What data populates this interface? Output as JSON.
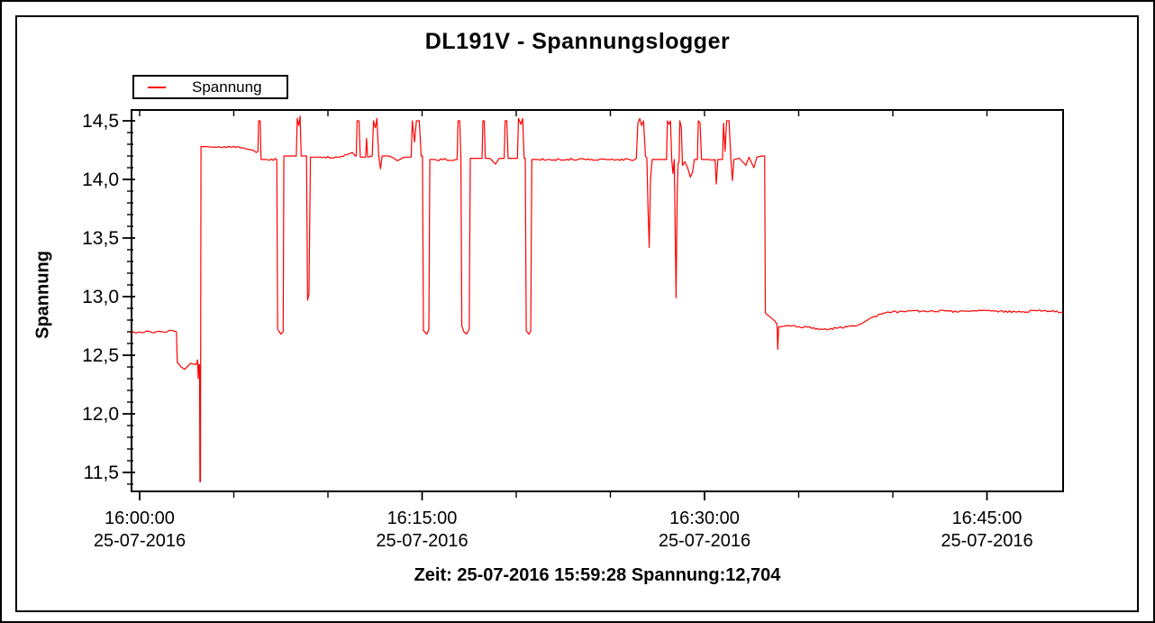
{
  "window": {
    "background": "#ffffff",
    "border_color": "#000000"
  },
  "title": "DL191V - Spannungslogger",
  "legend": {
    "label": "Spannung",
    "line_color": "#ff0000"
  },
  "y_axis": {
    "label": "Spannung",
    "ticks": [
      {
        "label": "14,5",
        "value": 14.5
      },
      {
        "label": "14,0",
        "value": 14.0
      },
      {
        "label": "13,5",
        "value": 13.5
      },
      {
        "label": "13,0",
        "value": 13.0
      },
      {
        "label": "12,5",
        "value": 12.5
      },
      {
        "label": "12,0",
        "value": 12.0
      },
      {
        "label": "11,5",
        "value": 11.5
      }
    ],
    "minor_step": 0.1
  },
  "x_axis": {
    "ticks": [
      {
        "time": "16:00:00",
        "date": "25-07-2016",
        "minutes": 0
      },
      {
        "time": "16:15:00",
        "date": "25-07-2016",
        "minutes": 15
      },
      {
        "time": "16:30:00",
        "date": "25-07-2016",
        "minutes": 30
      },
      {
        "time": "16:45:00",
        "date": "25-07-2016",
        "minutes": 45
      }
    ],
    "minor_step_minutes": 5,
    "major_step_minutes": 15
  },
  "status_line": "Zeit: 25-07-2016 15:59:28 Spannung:12,704",
  "chart_data": {
    "type": "line",
    "title": "DL191V - Spannungslogger",
    "ylabel": "Spannung",
    "x_unit": "minutes after 16:00:00 on 25-07-2016",
    "x_range_minutes": [
      -0.43,
      49.04
    ],
    "ylim": [
      11.34,
      14.59
    ],
    "grid": false,
    "legend_position": "top-left",
    "noise_amplitude_v": 0.009,
    "series": [
      {
        "name": "Spannung",
        "color": "#ff0000",
        "points": [
          [
            -0.43,
            12.7
          ],
          [
            1.2,
            12.7
          ],
          [
            1.75,
            12.71
          ],
          [
            1.95,
            12.7
          ],
          [
            2.0,
            12.44
          ],
          [
            2.2,
            12.4
          ],
          [
            2.4,
            12.38
          ],
          [
            2.7,
            12.43
          ],
          [
            3.0,
            12.42
          ],
          [
            3.08,
            12.46
          ],
          [
            3.11,
            12.3
          ],
          [
            3.15,
            12.42
          ],
          [
            3.18,
            12.42
          ],
          [
            3.2,
            11.42
          ],
          [
            3.23,
            11.42
          ],
          [
            3.26,
            14.28
          ],
          [
            3.6,
            14.28
          ],
          [
            4.5,
            14.28
          ],
          [
            5.5,
            14.27
          ],
          [
            6.0,
            14.25
          ],
          [
            6.2,
            14.23
          ],
          [
            6.28,
            14.24
          ],
          [
            6.32,
            14.5
          ],
          [
            6.4,
            14.5
          ],
          [
            6.45,
            14.17
          ],
          [
            6.7,
            14.17
          ],
          [
            7.28,
            14.17
          ],
          [
            7.33,
            12.72
          ],
          [
            7.5,
            12.68
          ],
          [
            7.62,
            12.7
          ],
          [
            7.66,
            14.2
          ],
          [
            7.9,
            14.2
          ],
          [
            8.32,
            14.2
          ],
          [
            8.37,
            14.52
          ],
          [
            8.45,
            14.46
          ],
          [
            8.52,
            14.54
          ],
          [
            8.58,
            14.2
          ],
          [
            8.75,
            14.2
          ],
          [
            8.86,
            14.2
          ],
          [
            8.92,
            12.97
          ],
          [
            8.99,
            13.02
          ],
          [
            9.07,
            14.19
          ],
          [
            9.4,
            14.19
          ],
          [
            10.5,
            14.19
          ],
          [
            11.0,
            14.21
          ],
          [
            11.3,
            14.23
          ],
          [
            11.45,
            14.2
          ],
          [
            11.5,
            14.2
          ],
          [
            11.55,
            14.5
          ],
          [
            11.65,
            14.5
          ],
          [
            11.72,
            14.19
          ],
          [
            12.0,
            14.19
          ],
          [
            12.05,
            14.35
          ],
          [
            12.11,
            14.19
          ],
          [
            12.35,
            14.2
          ],
          [
            12.42,
            14.5
          ],
          [
            12.52,
            14.44
          ],
          [
            12.6,
            14.52
          ],
          [
            12.7,
            14.2
          ],
          [
            12.79,
            14.09
          ],
          [
            12.88,
            14.2
          ],
          [
            13.2,
            14.2
          ],
          [
            13.7,
            14.16
          ],
          [
            14.05,
            14.19
          ],
          [
            14.42,
            14.19
          ],
          [
            14.48,
            14.5
          ],
          [
            14.6,
            14.32
          ],
          [
            14.7,
            14.5
          ],
          [
            14.85,
            14.5
          ],
          [
            14.95,
            14.2
          ],
          [
            15.02,
            14.2
          ],
          [
            15.07,
            12.71
          ],
          [
            15.25,
            12.68
          ],
          [
            15.36,
            12.72
          ],
          [
            15.41,
            14.17
          ],
          [
            15.7,
            14.17
          ],
          [
            16.86,
            14.17
          ],
          [
            16.91,
            14.5
          ],
          [
            17.0,
            14.5
          ],
          [
            17.06,
            14.18
          ],
          [
            17.11,
            12.75
          ],
          [
            17.22,
            12.7
          ],
          [
            17.36,
            12.68
          ],
          [
            17.5,
            12.72
          ],
          [
            17.56,
            14.18
          ],
          [
            17.8,
            14.18
          ],
          [
            18.18,
            14.18
          ],
          [
            18.23,
            14.5
          ],
          [
            18.3,
            14.5
          ],
          [
            18.36,
            14.18
          ],
          [
            18.6,
            14.18
          ],
          [
            18.9,
            14.13
          ],
          [
            19.1,
            14.18
          ],
          [
            19.36,
            14.18
          ],
          [
            19.41,
            14.5
          ],
          [
            19.5,
            14.5
          ],
          [
            19.57,
            14.18
          ],
          [
            19.8,
            14.18
          ],
          [
            20.06,
            14.18
          ],
          [
            20.12,
            14.52
          ],
          [
            20.25,
            14.47
          ],
          [
            20.34,
            14.52
          ],
          [
            20.42,
            14.18
          ],
          [
            20.48,
            14.18
          ],
          [
            20.53,
            12.71
          ],
          [
            20.68,
            12.68
          ],
          [
            20.77,
            12.71
          ],
          [
            20.83,
            14.17
          ],
          [
            21.1,
            14.17
          ],
          [
            23.0,
            14.17
          ],
          [
            25.0,
            14.17
          ],
          [
            26.3,
            14.17
          ],
          [
            26.38,
            14.18
          ],
          [
            26.46,
            14.48
          ],
          [
            26.56,
            14.52
          ],
          [
            26.66,
            14.46
          ],
          [
            26.76,
            14.5
          ],
          [
            26.86,
            14.2
          ],
          [
            26.94,
            14.18
          ],
          [
            27.0,
            13.75
          ],
          [
            27.06,
            13.42
          ],
          [
            27.13,
            14.0
          ],
          [
            27.22,
            14.17
          ],
          [
            27.6,
            14.17
          ],
          [
            27.98,
            14.17
          ],
          [
            28.03,
            14.5
          ],
          [
            28.12,
            14.47
          ],
          [
            28.19,
            14.5
          ],
          [
            28.26,
            14.17
          ],
          [
            28.32,
            14.05
          ],
          [
            28.39,
            14.17
          ],
          [
            28.44,
            13.6
          ],
          [
            28.49,
            12.99
          ],
          [
            28.55,
            13.9
          ],
          [
            28.6,
            14.14
          ],
          [
            28.65,
            14.15
          ],
          [
            28.69,
            14.5
          ],
          [
            28.77,
            14.44
          ],
          [
            28.83,
            14.12
          ],
          [
            28.95,
            14.15
          ],
          [
            29.1,
            14.1
          ],
          [
            29.25,
            14.02
          ],
          [
            29.36,
            14.06
          ],
          [
            29.46,
            14.17
          ],
          [
            29.62,
            14.17
          ],
          [
            29.67,
            14.5
          ],
          [
            29.76,
            14.48
          ],
          [
            29.84,
            14.17
          ],
          [
            30.1,
            14.17
          ],
          [
            30.56,
            14.17
          ],
          [
            30.62,
            13.96
          ],
          [
            30.71,
            14.17
          ],
          [
            30.95,
            14.17
          ],
          [
            31.01,
            14.48
          ],
          [
            31.09,
            14.24
          ],
          [
            31.17,
            14.5
          ],
          [
            31.3,
            14.5
          ],
          [
            31.4,
            14.17
          ],
          [
            31.48,
            13.99
          ],
          [
            31.56,
            14.17
          ],
          [
            31.85,
            14.18
          ],
          [
            32.2,
            14.12
          ],
          [
            32.36,
            14.19
          ],
          [
            32.62,
            14.1
          ],
          [
            32.78,
            14.19
          ],
          [
            33.05,
            14.2
          ],
          [
            33.19,
            14.2
          ],
          [
            33.23,
            12.86
          ],
          [
            33.45,
            12.83
          ],
          [
            33.75,
            12.79
          ],
          [
            33.85,
            12.76
          ],
          [
            33.89,
            12.55
          ],
          [
            33.94,
            12.74
          ],
          [
            34.3,
            12.75
          ],
          [
            35.5,
            12.74
          ],
          [
            36.3,
            12.72
          ],
          [
            37.0,
            12.73
          ],
          [
            37.7,
            12.75
          ],
          [
            38.05,
            12.75
          ],
          [
            38.35,
            12.77
          ],
          [
            38.85,
            12.82
          ],
          [
            39.35,
            12.85
          ],
          [
            39.75,
            12.87
          ],
          [
            40.6,
            12.87
          ],
          [
            42.0,
            12.88
          ],
          [
            43.5,
            12.87
          ],
          [
            45.0,
            12.88
          ],
          [
            46.5,
            12.87
          ],
          [
            48.0,
            12.88
          ],
          [
            49.04,
            12.87
          ]
        ]
      }
    ]
  }
}
